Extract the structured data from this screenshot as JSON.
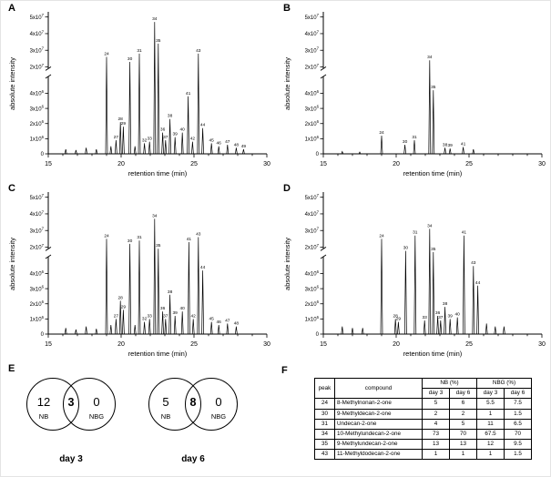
{
  "panels": {
    "a": "A",
    "b": "B",
    "c": "C",
    "d": "D",
    "e": "E",
    "f": "F"
  },
  "axes": {
    "xlabel": "retention time (min)",
    "ylabel": "absolute intensity",
    "xlim": [
      15,
      30
    ],
    "x_major_ticks": [
      15,
      20,
      25,
      30
    ],
    "y_bottom_ticks": [
      0,
      1000000.0,
      2000000.0,
      3000000.0,
      4000000.0
    ],
    "y_top_ticks": [
      20000000.0,
      30000000.0,
      40000000.0,
      50000000.0
    ],
    "y_axis_break": true
  },
  "chart_data": [
    {
      "id": "A",
      "type": "line",
      "xlabel": "retention time (min)",
      "ylabel": "absolute intensity",
      "xlim": [
        15,
        30
      ],
      "ylim_bottom": [
        0,
        5000000.0
      ],
      "ylim_top": [
        20000000.0,
        52000000.0
      ],
      "peaks": [
        [
          16.2,
          300000.0,
          ""
        ],
        [
          16.9,
          250000.0,
          ""
        ],
        [
          17.6,
          400000.0,
          ""
        ],
        [
          18.3,
          300000.0,
          ""
        ],
        [
          19.0,
          26000000.0,
          "24"
        ],
        [
          19.3,
          500000.0,
          ""
        ],
        [
          19.65,
          900000.0,
          "27"
        ],
        [
          19.95,
          2100000.0,
          "28"
        ],
        [
          20.15,
          1800000.0,
          "29"
        ],
        [
          20.6,
          23000000.0,
          "30"
        ],
        [
          20.95,
          500000.0,
          ""
        ],
        [
          21.25,
          28000000.0,
          "31"
        ],
        [
          21.6,
          700000.0,
          "32"
        ],
        [
          21.95,
          800000.0,
          "33"
        ],
        [
          22.3,
          47000000.0,
          "34"
        ],
        [
          22.55,
          34000000.0,
          "35"
        ],
        [
          22.85,
          1400000.0,
          "36"
        ],
        [
          23.05,
          900000.0,
          "37"
        ],
        [
          23.35,
          2300000.0,
          "38"
        ],
        [
          23.7,
          1100000.0,
          "39"
        ],
        [
          24.2,
          1400000.0,
          "40"
        ],
        [
          24.6,
          3800000.0,
          "41"
        ],
        [
          24.9,
          800000.0,
          "42"
        ],
        [
          25.3,
          28000000.0,
          "43"
        ],
        [
          25.6,
          1700000.0,
          "44"
        ],
        [
          26.2,
          700000.0,
          "45"
        ],
        [
          26.7,
          500000.0,
          "46"
        ],
        [
          27.3,
          600000.0,
          "47"
        ],
        [
          27.9,
          400000.0,
          "48"
        ],
        [
          28.4,
          300000.0,
          "49"
        ]
      ]
    },
    {
      "id": "B",
      "type": "line",
      "xlabel": "retention time (min)",
      "ylabel": "absolute intensity",
      "xlim": [
        15,
        30
      ],
      "ylim_bottom": [
        0,
        5000000.0
      ],
      "ylim_top": [
        20000000.0,
        52000000.0
      ],
      "peaks": [
        [
          16.3,
          150000.0,
          ""
        ],
        [
          17.5,
          120000.0,
          ""
        ],
        [
          19.0,
          1200000.0,
          "24"
        ],
        [
          20.6,
          600000.0,
          "30"
        ],
        [
          21.25,
          900000.0,
          "31"
        ],
        [
          22.3,
          24000000.0,
          "34"
        ],
        [
          22.55,
          4200000.0,
          "35"
        ],
        [
          23.35,
          400000.0,
          "38"
        ],
        [
          23.7,
          350000.0,
          "39"
        ],
        [
          24.6,
          450000.0,
          "41"
        ],
        [
          25.3,
          300000.0,
          ""
        ]
      ]
    },
    {
      "id": "C",
      "type": "line",
      "xlabel": "retention time (min)",
      "ylabel": "absolute intensity",
      "xlim": [
        15,
        30
      ],
      "ylim_bottom": [
        0,
        5000000.0
      ],
      "ylim_top": [
        20000000.0,
        52000000.0
      ],
      "peaks": [
        [
          16.2,
          400000.0,
          ""
        ],
        [
          16.9,
          300000.0,
          ""
        ],
        [
          17.6,
          500000.0,
          ""
        ],
        [
          18.3,
          350000.0,
          ""
        ],
        [
          19.0,
          25000000.0,
          "24"
        ],
        [
          19.3,
          600000.0,
          ""
        ],
        [
          19.65,
          1000000.0,
          "27"
        ],
        [
          19.95,
          2200000.0,
          "28"
        ],
        [
          20.15,
          1600000.0,
          "29"
        ],
        [
          20.6,
          22000000.0,
          "30"
        ],
        [
          20.95,
          600000.0,
          ""
        ],
        [
          21.25,
          24000000.0,
          "31"
        ],
        [
          21.6,
          800000.0,
          "32"
        ],
        [
          21.95,
          1000000.0,
          "33"
        ],
        [
          22.3,
          37000000.0,
          "34"
        ],
        [
          22.55,
          18000000.0,
          "35"
        ],
        [
          22.85,
          1500000.0,
          "36"
        ],
        [
          23.05,
          1000000.0,
          "37"
        ],
        [
          23.35,
          2600000.0,
          "38"
        ],
        [
          23.7,
          1200000.0,
          "39"
        ],
        [
          24.2,
          1500000.0,
          "40"
        ],
        [
          24.65,
          23000000.0,
          "41"
        ],
        [
          24.95,
          1000000.0,
          "42"
        ],
        [
          25.3,
          26000000.0,
          "43"
        ],
        [
          25.6,
          4200000.0,
          "44"
        ],
        [
          26.2,
          800000.0,
          "45"
        ],
        [
          26.7,
          600000.0,
          "46"
        ],
        [
          27.3,
          700000.0,
          "47"
        ],
        [
          27.9,
          500000.0,
          "48"
        ]
      ]
    },
    {
      "id": "D",
      "type": "line",
      "xlabel": "retention time (min)",
      "ylabel": "absolute intensity",
      "xlim": [
        15,
        30
      ],
      "ylim_bottom": [
        0,
        5000000.0
      ],
      "ylim_top": [
        20000000.0,
        52000000.0
      ],
      "peaks": [
        [
          16.3,
          500000.0,
          ""
        ],
        [
          17.0,
          400000.0,
          ""
        ],
        [
          17.7,
          400000.0,
          ""
        ],
        [
          19.0,
          25000000.0,
          "24"
        ],
        [
          19.95,
          1000000.0,
          "28"
        ],
        [
          20.15,
          800000.0,
          "29"
        ],
        [
          20.65,
          15000000.0,
          "30"
        ],
        [
          21.3,
          27000000.0,
          "31"
        ],
        [
          21.95,
          900000.0,
          "33"
        ],
        [
          22.3,
          31000000.0,
          "34"
        ],
        [
          22.55,
          13500000.0,
          "35"
        ],
        [
          22.85,
          1200000.0,
          "36"
        ],
        [
          23.05,
          900000.0,
          "37"
        ],
        [
          23.35,
          1800000.0,
          "38"
        ],
        [
          23.7,
          1000000.0,
          "39"
        ],
        [
          24.2,
          1100000.0,
          "40"
        ],
        [
          24.65,
          27000000.0,
          "41"
        ],
        [
          25.3,
          4500000.0,
          "43"
        ],
        [
          25.6,
          3200000.0,
          "44"
        ],
        [
          26.2,
          700000.0,
          ""
        ],
        [
          26.8,
          500000.0,
          ""
        ],
        [
          27.4,
          500000.0,
          ""
        ]
      ]
    }
  ],
  "venn": {
    "diagrams": [
      {
        "left_count": "12",
        "overlap_count": "3",
        "right_count": "0",
        "left_label": "NB",
        "right_label": "NBG",
        "caption": "day 3"
      },
      {
        "left_count": "5",
        "overlap_count": "8",
        "right_count": "0",
        "left_label": "NB",
        "right_label": "NBG",
        "caption": "day 6"
      }
    ]
  },
  "table": {
    "col_peak": "peak",
    "col_compound": "compound",
    "group_nb": "NB (%)",
    "group_nbg": "NBG (%)",
    "sub_day3": "day 3",
    "sub_day6": "day 6",
    "rows": [
      {
        "peak": "24",
        "compound": "8-Methylnonan-2-one",
        "nb_day3": "5",
        "nb_day6": "6",
        "nbg_day3": "5.5",
        "nbg_day6": "7.5"
      },
      {
        "peak": "30",
        "compound": "9-Methyldecan-2-one",
        "nb_day3": "2",
        "nb_day6": "2",
        "nbg_day3": "1",
        "nbg_day6": "1.5"
      },
      {
        "peak": "31",
        "compound": "Undecan-2-one",
        "nb_day3": "4",
        "nb_day6": "5",
        "nbg_day3": "11",
        "nbg_day6": "6.5"
      },
      {
        "peak": "34",
        "compound": "10-Methylundecan-2-one",
        "nb_day3": "73",
        "nb_day6": "70",
        "nbg_day3": "67.5",
        "nbg_day6": "70"
      },
      {
        "peak": "35",
        "compound": "9-Methylundecan-2-one",
        "nb_day3": "13",
        "nb_day6": "13",
        "nbg_day3": "12",
        "nbg_day6": "9.5"
      },
      {
        "peak": "43",
        "compound": "11-Methyldodecan-2-one",
        "nb_day3": "1",
        "nb_day6": "1",
        "nbg_day3": "1",
        "nbg_day6": "1.5"
      }
    ]
  }
}
